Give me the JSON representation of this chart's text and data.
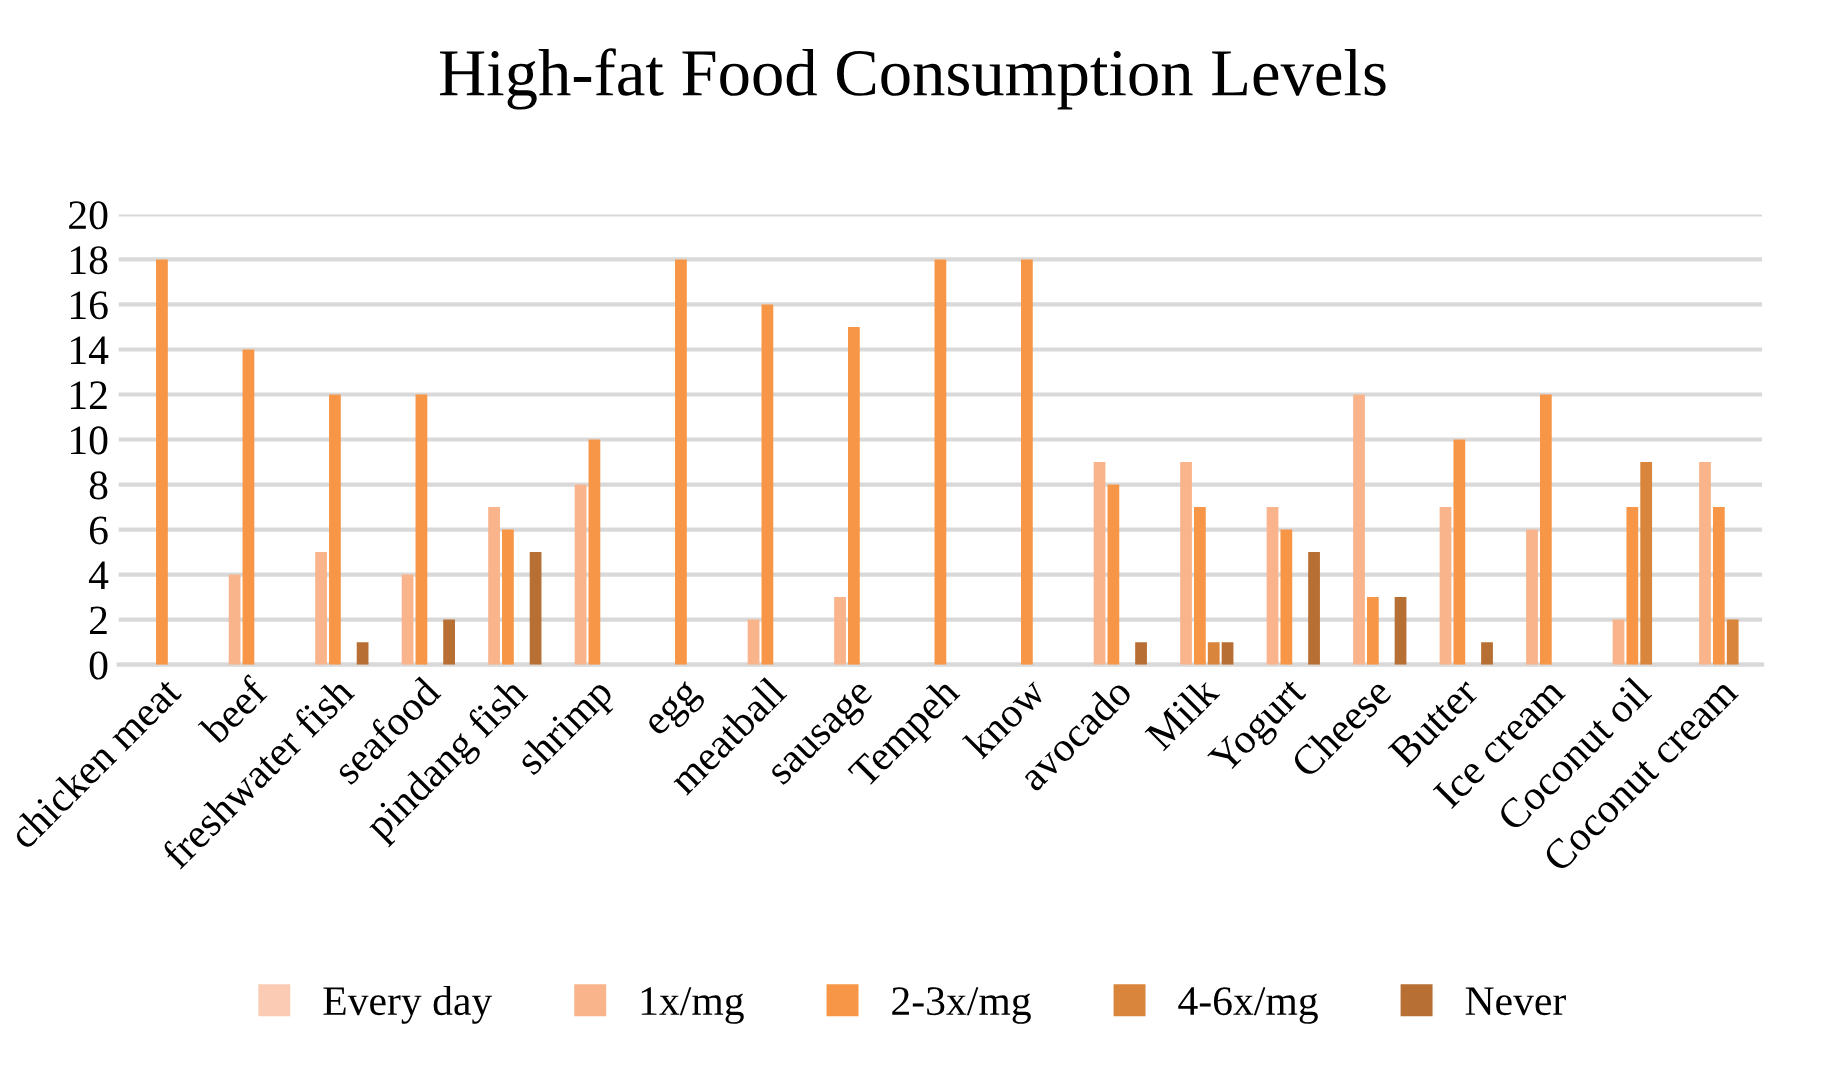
{
  "chart_data": {
    "type": "bar",
    "title": "High-fat Food Consumption Levels",
    "categories": [
      "chicken meat",
      "beef",
      "freshwater fish",
      "seafood",
      "pindang fish",
      "shrimp",
      "egg",
      "meatball",
      "sausage",
      "Tempeh",
      "know",
      "avocado",
      "Milk",
      "Yogurt",
      "Cheese",
      "Butter",
      "Ice cream",
      "Coconut oil",
      "Coconut cream"
    ],
    "series": [
      {
        "name": "Every day",
        "color": "#fbcbb4",
        "values": [
          0,
          0,
          0,
          0,
          0,
          0,
          0,
          0,
          0,
          0,
          0,
          0,
          0,
          0,
          0,
          0,
          0,
          0,
          0
        ]
      },
      {
        "name": "1x/mg",
        "color": "#f9b48c",
        "values": [
          0,
          4,
          5,
          4,
          7,
          8,
          0,
          2,
          3,
          0,
          0,
          9,
          9,
          7,
          12,
          7,
          6,
          2,
          9
        ]
      },
      {
        "name": "2-3x/mg",
        "color": "#f79646",
        "values": [
          18,
          14,
          12,
          12,
          6,
          10,
          18,
          16,
          15,
          18,
          18,
          8,
          7,
          6,
          3,
          10,
          12,
          7,
          7
        ]
      },
      {
        "name": "4-6x/mg",
        "color": "#d9853c",
        "values": [
          0,
          0,
          0,
          0,
          0,
          0,
          0,
          0,
          0,
          0,
          0,
          0,
          1,
          0,
          0,
          0,
          0,
          9,
          2
        ]
      },
      {
        "name": "Never",
        "color": "#b86f33",
        "values": [
          0,
          0,
          1,
          2,
          5,
          0,
          0,
          0,
          0,
          0,
          0,
          1,
          1,
          5,
          3,
          1,
          0,
          0,
          0
        ]
      }
    ],
    "ylim": [
      0,
      20
    ],
    "yticks": [
      0,
      2,
      4,
      6,
      8,
      10,
      12,
      14,
      16,
      18,
      20
    ],
    "grid": "y",
    "legend": "bottom"
  }
}
